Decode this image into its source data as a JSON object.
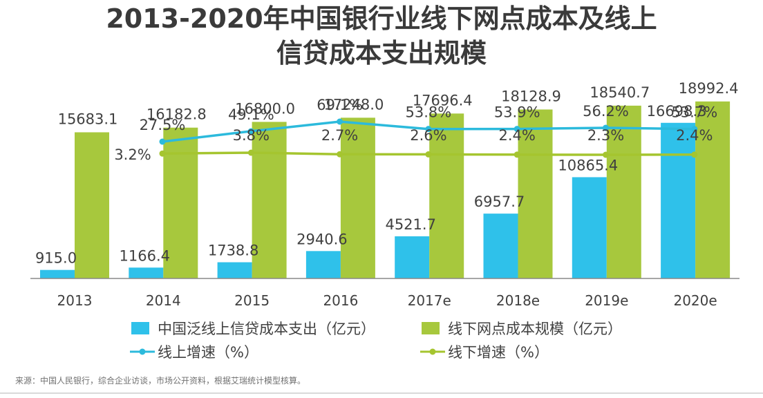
{
  "title": {
    "line1": "2013-2020年中国银行业线下网点成本及线上",
    "line2": "信贷成本支出规模"
  },
  "source": "来源：中国人民银行，综合企业访谈，市场公开资料，根据艾瑞统计模型核算。",
  "colors": {
    "online_bar": "#2fc1ea",
    "offline_bar": "#a7c83d",
    "online_line": "#2cbadc",
    "offline_line": "#a5c52f",
    "axis": "#888888",
    "text": "#404040"
  },
  "chart_data": {
    "type": "bar+line",
    "categories": [
      "2013",
      "2014",
      "2015",
      "2016",
      "2017e",
      "2018e",
      "2019e",
      "2020e"
    ],
    "series": [
      {
        "name": "中国泛线上信贷成本支出（亿元）",
        "kind": "bar",
        "values": [
          915.0,
          1166.4,
          1738.8,
          2940.6,
          4521.7,
          6957.7,
          10865.4,
          16698.3
        ],
        "labels": [
          "915.0",
          "1166.4",
          "1738.8",
          "2940.6",
          "4521.7",
          "6957.7",
          "10865.4",
          "16698.3"
        ]
      },
      {
        "name": "线下网点成本规模（亿元）",
        "kind": "bar",
        "values": [
          15683.1,
          16182.8,
          16800.0,
          17248.0,
          17696.4,
          18128.9,
          18540.7,
          18992.4
        ],
        "labels": [
          "15683.1",
          "16182.8",
          "16800.0",
          "17248.0",
          "17696.4",
          "18128.9",
          "18540.7",
          "18992.4"
        ]
      },
      {
        "name": "线上增速（%）",
        "kind": "line",
        "values": [
          null,
          27.5,
          49.1,
          69.1,
          53.8,
          53.9,
          56.2,
          53.7
        ],
        "labels": [
          "",
          "27.5%",
          "49.1%",
          "69.1%",
          "53.8%",
          "53.9%",
          "56.2%",
          "53.7%"
        ]
      },
      {
        "name": "线下增速（%）",
        "kind": "line",
        "values": [
          null,
          3.2,
          3.8,
          2.7,
          2.6,
          2.4,
          2.3,
          2.4
        ],
        "labels": [
          "",
          "3.2%",
          "3.8%",
          "2.7%",
          "2.6%",
          "2.4%",
          "2.3%",
          "2.4%"
        ]
      }
    ],
    "bar_ylim": [
      0,
      21500
    ],
    "legend_position": "bottom"
  }
}
